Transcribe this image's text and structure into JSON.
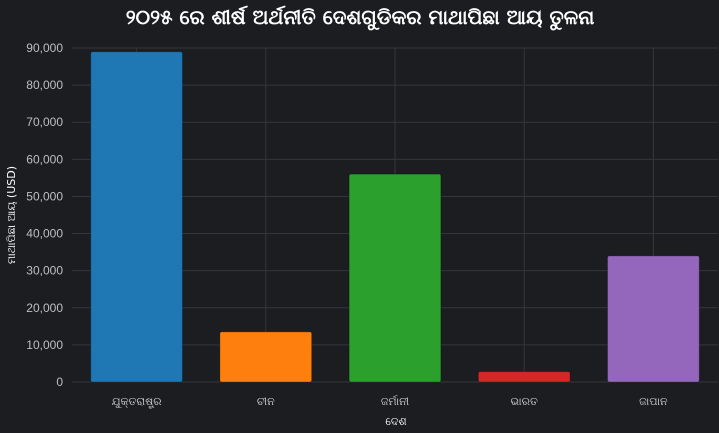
{
  "chart_data": {
    "type": "bar",
    "title": "୨୦୨୫ ରେ ଶୀର୍ଷ ଅର୍ଥନୀତି ଦେଶଗୁଡିକର ମାଥାପିଛା ଆୟ ତୁଳନା",
    "xlabel": "ଦେଶ",
    "ylabel": "ମାଥାପିଛା ଆୟ (USD)",
    "categories": [
      "ଯୁକ୍ତରାଷ୍ଟ୍ର",
      "ଚୀନ",
      "ଜର୍ମାନୀ",
      "ଭାରତ",
      "ଜାପାନ"
    ],
    "values": [
      89000,
      13500,
      56000,
      2800,
      34000
    ],
    "colors": [
      "#1f77b4",
      "#ff7f0e",
      "#2ca02c",
      "#d62728",
      "#9467bd"
    ],
    "ylim": [
      0,
      90000
    ],
    "yticks": [
      0,
      10000,
      20000,
      30000,
      40000,
      50000,
      60000,
      70000,
      80000,
      90000
    ],
    "ytick_labels": [
      "0",
      "10,000",
      "20,000",
      "30,000",
      "40,000",
      "50,000",
      "60,000",
      "70,000",
      "80,000",
      "90,000"
    ],
    "grid": true,
    "background": "#1c1d21"
  }
}
